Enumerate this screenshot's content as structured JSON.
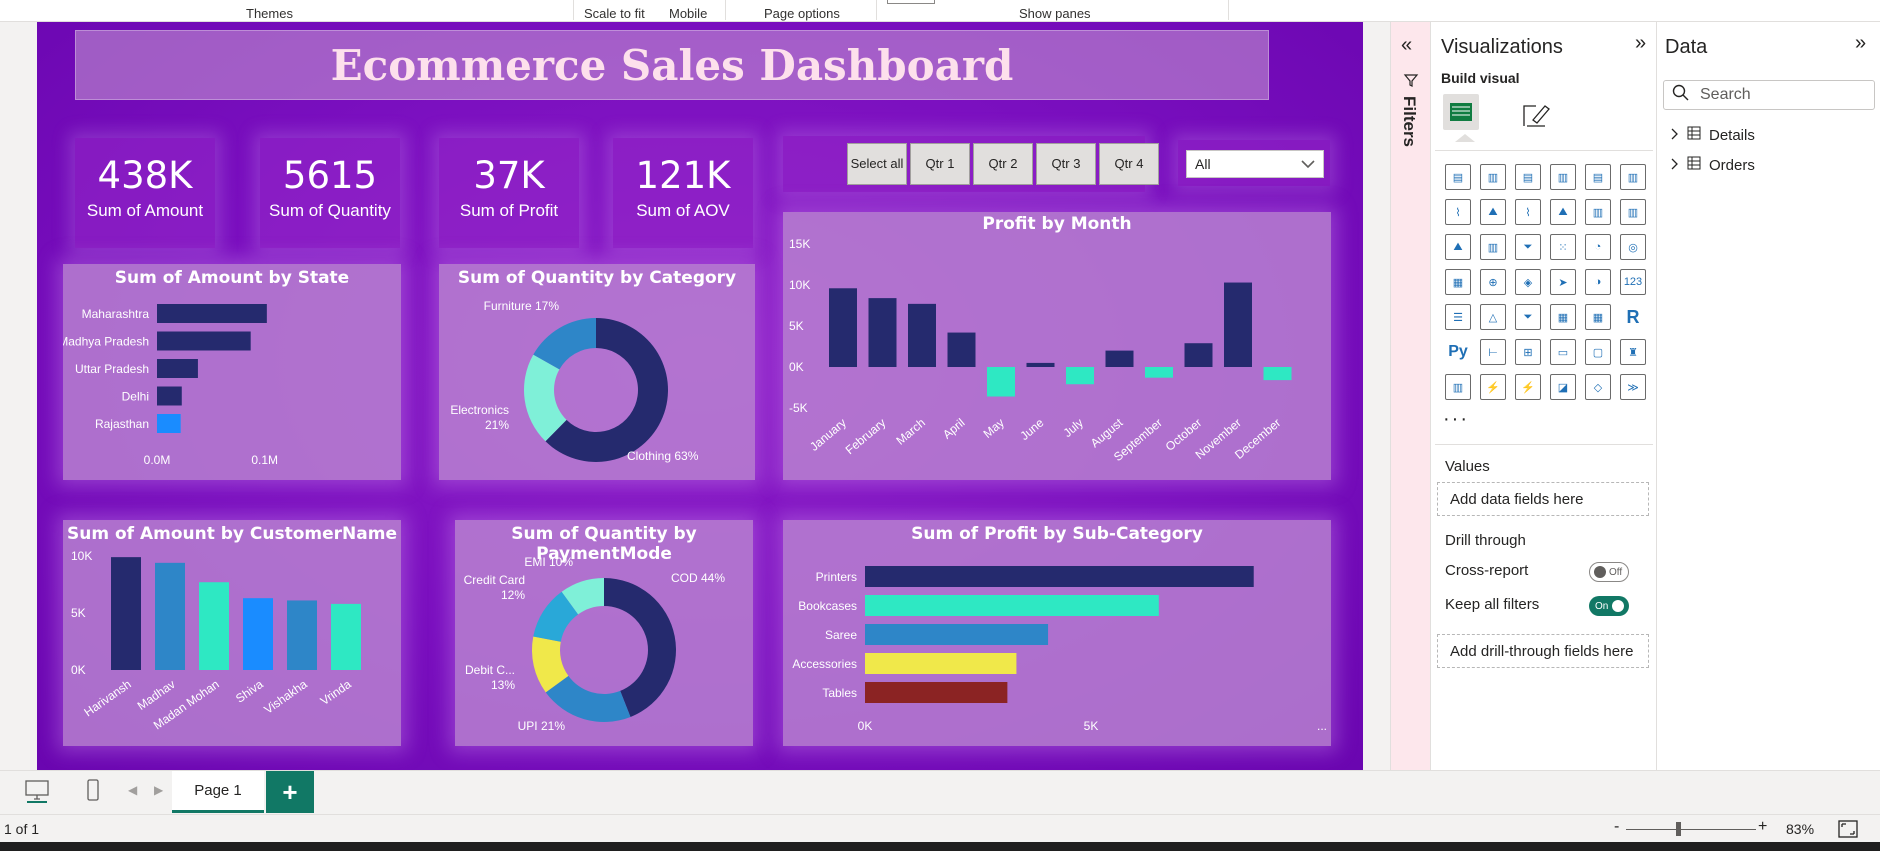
{
  "ribbon": {
    "themes": "Themes",
    "scale_to_fit": "Scale to fit",
    "mobile": "Mobile",
    "page_options": "Page options",
    "show_panes": "Show panes"
  },
  "report": {
    "title": "Ecommerce Sales Dashboard",
    "kpis": [
      {
        "value": "438K",
        "label": "Sum of Amount"
      },
      {
        "value": "5615",
        "label": "Sum of Quantity"
      },
      {
        "value": "37K",
        "label": "Sum of Profit"
      },
      {
        "value": "121K",
        "label": "Sum of AOV"
      }
    ],
    "quarter_slicer": [
      "Select all",
      "Qtr 1",
      "Qtr 2",
      "Qtr 3",
      "Qtr 4"
    ],
    "dropdown_value": "All",
    "colors": {
      "navy": "#252a6e",
      "teal": "#2ee8c3",
      "blue": "#2e86c8",
      "bright_blue": "#1a8cff",
      "light_teal": "#7ff0d8",
      "yellow": "#f0e84a",
      "maroon": "#8b2323"
    }
  },
  "chart_data": [
    {
      "type": "bar",
      "title": "Sum of Amount by State",
      "orientation": "horizontal",
      "categories": [
        "Maharashtra",
        "Madhya Pradesh",
        "Uttar Pradesh",
        "Delhi",
        "Rajasthan"
      ],
      "values": [
        0.102,
        0.087,
        0.038,
        0.023,
        0.022
      ],
      "bar_colors": [
        "#252a6e",
        "#252a6e",
        "#252a6e",
        "#252a6e",
        "#1a8cff"
      ],
      "xticks": [
        "0.0M",
        "0.1M"
      ],
      "xlim": [
        0,
        0.13
      ]
    },
    {
      "type": "pie",
      "donut": true,
      "title": "Sum of Quantity by Category",
      "labels": [
        "Clothing",
        "Electronics",
        "Furniture"
      ],
      "values": [
        63,
        21,
        17
      ],
      "display_labels": [
        "Clothing 63%",
        "Electronics 21%",
        "Furniture 17%"
      ],
      "colors": [
        "#252a6e",
        "#7ff0d8",
        "#2e86c8"
      ]
    },
    {
      "type": "bar",
      "title": "Profit by Month",
      "categories": [
        "January",
        "February",
        "March",
        "April",
        "May",
        "June",
        "July",
        "August",
        "September",
        "October",
        "November",
        "December"
      ],
      "values": [
        9600,
        8400,
        7700,
        4200,
        -3600,
        500,
        -2100,
        2000,
        -1300,
        2900,
        10300,
        -1600
      ],
      "positive_color": "#252a6e",
      "negative_color": "#2ee8c3",
      "yticks": [
        "15K",
        "10K",
        "5K",
        "0K",
        "-5K"
      ],
      "ylim": [
        -5000,
        15000
      ]
    },
    {
      "type": "bar",
      "title": "Sum of Amount by CustomerName",
      "categories": [
        "Harivansh",
        "Madhav",
        "Madan Mohan",
        "Shiva",
        "Vishakha",
        "Vrinda"
      ],
      "values": [
        9900,
        9400,
        7700,
        6300,
        6100,
        5800
      ],
      "bar_colors": [
        "#252a6e",
        "#2e86c8",
        "#2ee8c3",
        "#1a8cff",
        "#2e86c8",
        "#2ee8c3"
      ],
      "yticks": [
        "10K",
        "5K",
        "0K"
      ],
      "ylim": [
        0,
        10000
      ]
    },
    {
      "type": "pie",
      "donut": true,
      "title": "Sum of Quantity by PaymentMode",
      "labels": [
        "COD",
        "UPI",
        "Debit Card",
        "Credit Card",
        "EMI"
      ],
      "values": [
        44,
        21,
        13,
        12,
        10
      ],
      "display_labels": [
        "COD 44%",
        "UPI 21%",
        "Debit C... 13%",
        "Credit Card 12%",
        "EMI 10%"
      ],
      "colors": [
        "#252a6e",
        "#2e86c8",
        "#f0e84a",
        "#29a8d8",
        "#7ff0d8"
      ]
    },
    {
      "type": "bar",
      "title": "Sum of Profit by Sub-Category",
      "orientation": "horizontal",
      "categories": [
        "Printers",
        "Bookcases",
        "Saree",
        "Accessories",
        "Tables"
      ],
      "values": [
        8600,
        6500,
        4050,
        3350,
        3150
      ],
      "bar_colors": [
        "#252a6e",
        "#2ee8c3",
        "#2e86c8",
        "#f0e84a",
        "#8b2323"
      ],
      "xticks": [
        "0K",
        "5K"
      ],
      "xlim": [
        0,
        10000
      ],
      "more": "..."
    }
  ],
  "filters_pane": {
    "label": "Filters"
  },
  "viz_pane": {
    "title": "Visualizations",
    "build_visual": "Build visual",
    "more": "···",
    "values_label": "Values",
    "values_placeholder": "Add data fields here",
    "drill_through": "Drill through",
    "cross_report": "Cross-report",
    "cross_report_state": "Off",
    "keep_all_filters": "Keep all filters",
    "keep_all_filters_state": "On",
    "drill_placeholder": "Add drill-through fields here"
  },
  "data_pane": {
    "title": "Data",
    "search_placeholder": "Search",
    "tables": [
      "Details",
      "Orders"
    ]
  },
  "bottom": {
    "page_tab": "Page 1",
    "add": "+",
    "page_count": "1 of 1",
    "zoom": "83%",
    "zoom_minus": "-",
    "zoom_plus": "+"
  }
}
